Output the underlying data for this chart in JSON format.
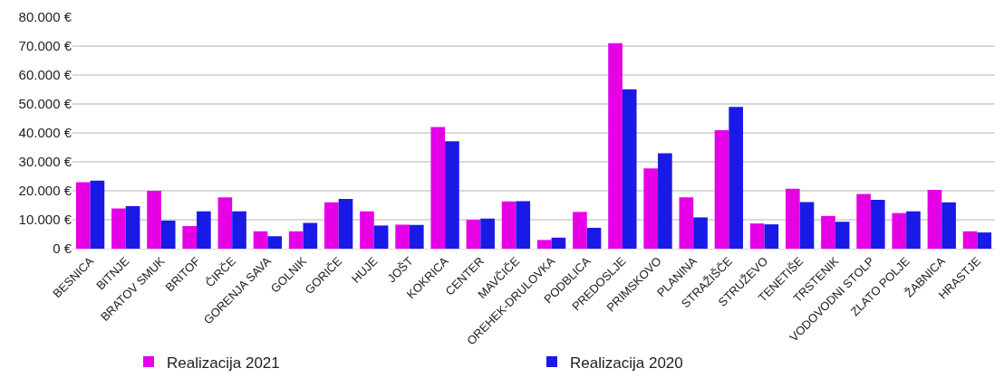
{
  "chart_data": {
    "type": "bar",
    "categories": [
      "BESNICA",
      "BITNJE",
      "BRATOV SMUK",
      "BRITOF",
      "ČIRČE",
      "GORENJA SAVA",
      "GOLNIK",
      "GORIČE",
      "HUJE",
      "JOŠT",
      "KOKRICA",
      "CENTER",
      "MAVČIČE",
      "OREHEK-DRULOVKA",
      "PODBLICA",
      "PREDOSLJE",
      "PRIMSKOVO",
      "PLANINA",
      "STRAŽIŠČE",
      "STRUŽEVO",
      "TENETIŠE",
      "TRSTENIK",
      "VODOVODNI STOLP",
      "ZLATO POLJE",
      "ŽABNICA",
      "HRASTJE"
    ],
    "series": [
      {
        "name": "Realizacija 2021",
        "color": "#e600e6",
        "values": [
          23000,
          13900,
          20000,
          7800,
          17700,
          6000,
          6000,
          16000,
          12900,
          8300,
          42000,
          10000,
          16300,
          3000,
          12700,
          71000,
          27700,
          17700,
          40900,
          8700,
          20700,
          11300,
          18900,
          12300,
          20300,
          6000
        ]
      },
      {
        "name": "Realizacija 2020",
        "color": "#1a1ae6",
        "values": [
          23500,
          14700,
          9700,
          12900,
          12900,
          4300,
          8900,
          17200,
          8000,
          8200,
          37100,
          10400,
          16400,
          3800,
          7200,
          55100,
          33000,
          10800,
          49000,
          8400,
          16100,
          9300,
          16900,
          12900,
          16000,
          5600
        ]
      }
    ],
    "ylim": [
      0,
      80000
    ],
    "yticks": [
      {
        "value": 0,
        "label": "0 €"
      },
      {
        "value": 10000,
        "label": "10.000 €"
      },
      {
        "value": 20000,
        "label": "20.000 €"
      },
      {
        "value": 30000,
        "label": "30.000 €"
      },
      {
        "value": 40000,
        "label": "40.000 €"
      },
      {
        "value": 50000,
        "label": "50.000 €"
      },
      {
        "value": 60000,
        "label": "60.000 €"
      },
      {
        "value": 70000,
        "label": "70.000 €"
      },
      {
        "value": 80000,
        "label": "80.000 €"
      }
    ],
    "grid": "y",
    "legend": "bottom"
  }
}
